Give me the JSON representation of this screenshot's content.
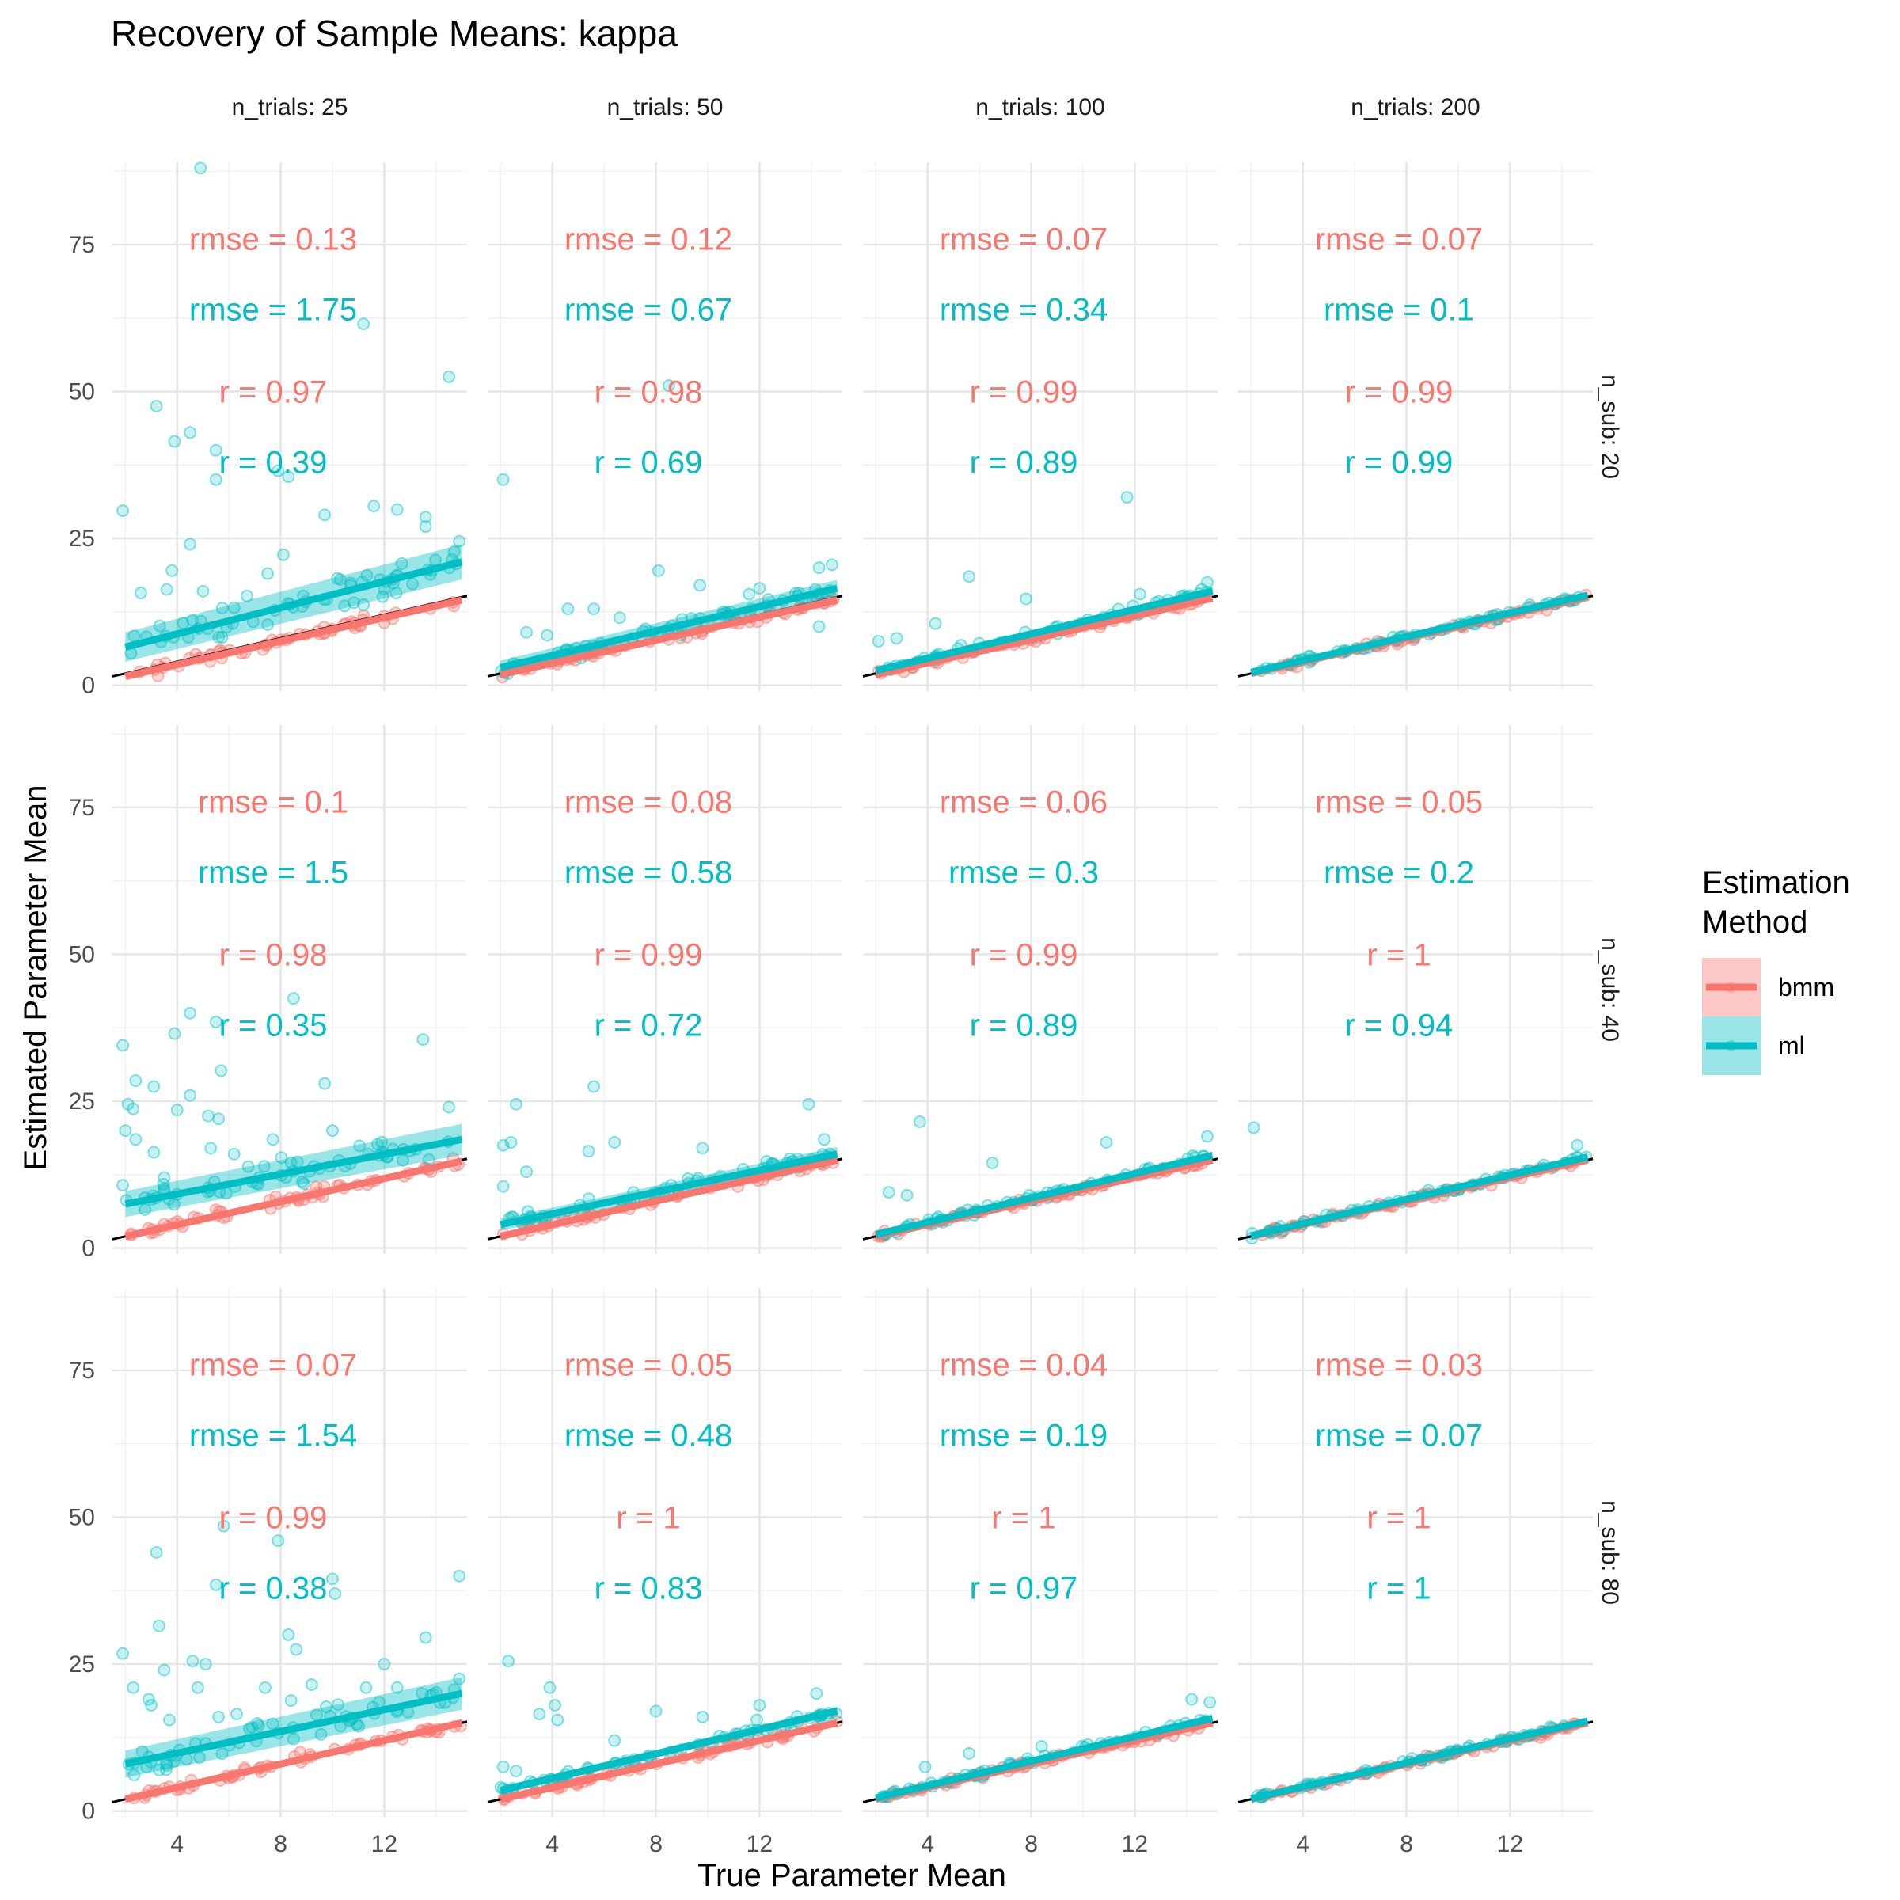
{
  "chart_data": {
    "type": "scatter",
    "title": "Recovery of Sample Means: kappa",
    "xlabel": "True Parameter Mean",
    "ylabel": "Estimated Parameter Mean",
    "facet_col_labels": [
      "n_trials: 25",
      "n_trials: 50",
      "n_trials: 100",
      "n_trials: 200"
    ],
    "facet_row_labels": [
      "n_sub: 20",
      "n_sub: 40",
      "n_sub: 80"
    ],
    "x_ticks": [
      "4",
      "8",
      "12"
    ],
    "y_ticks": [
      "0",
      "25",
      "50",
      "75"
    ],
    "xlim": [
      1.5,
      15.2
    ],
    "ylim": [
      -1,
      89
    ],
    "x_range_data": [
      2,
      15
    ],
    "grid": true,
    "identity_line": true,
    "legend": {
      "title_line1": "Estimation",
      "title_line2": "Method",
      "position": "right",
      "items": [
        {
          "name": "bmm",
          "color": "#F8766D"
        },
        {
          "name": "ml",
          "color": "#00BFC4"
        }
      ]
    },
    "series": [
      {
        "name": "bmm",
        "color": "#F8766D"
      },
      {
        "name": "ml",
        "color": "#00BFC4"
      }
    ],
    "panels": [
      {
        "row": 0,
        "col": 0,
        "rmse_bmm": "rmse = 0.13",
        "rmse_ml": "rmse = 1.75",
        "r_bmm": "r = 0.97",
        "r_ml": "r = 0.39",
        "fit_bmm": [
          [
            2,
            1.5
          ],
          [
            15,
            14.5
          ]
        ],
        "fit_ml": [
          [
            2,
            6.5
          ],
          [
            15,
            21
          ]
        ],
        "band_ml": 2.5,
        "ml_outliers": [
          [
            4.9,
            88
          ],
          [
            11.2,
            61.5
          ],
          [
            14.5,
            52.5
          ],
          [
            3.2,
            47.5
          ],
          [
            4.5,
            43
          ],
          [
            3.9,
            41.5
          ],
          [
            5.5,
            40
          ],
          [
            7.9,
            36.5
          ],
          [
            8.3,
            35.5
          ],
          [
            5.5,
            35
          ],
          [
            9.7,
            29
          ],
          [
            11.6,
            30.5
          ],
          [
            12.5,
            29.9
          ],
          [
            1.9,
            29.7
          ],
          [
            13.6,
            28.6
          ],
          [
            13.6,
            27
          ],
          [
            14.9,
            24.5
          ],
          [
            4.5,
            24
          ],
          [
            8.1,
            22.2
          ],
          [
            3.8,
            19.5
          ],
          [
            7.5,
            19
          ],
          [
            2.6,
            15.7
          ],
          [
            3.6,
            16.3
          ],
          [
            5,
            16
          ],
          [
            6.7,
            15.2
          ],
          [
            10.3,
            18
          ],
          [
            12,
            16.4
          ],
          [
            11.2,
            13.7
          ]
        ]
      },
      {
        "row": 0,
        "col": 1,
        "rmse_bmm": "rmse = 0.12",
        "rmse_ml": "rmse = 0.67",
        "r_bmm": "r = 0.98",
        "r_ml": "r = 0.69",
        "fit_bmm": [
          [
            2,
            1.8
          ],
          [
            15,
            14.5
          ]
        ],
        "fit_ml": [
          [
            2,
            3
          ],
          [
            15,
            16.5
          ]
        ],
        "band_ml": 1.2,
        "ml_outliers": [
          [
            2.1,
            35
          ],
          [
            8.5,
            51
          ],
          [
            8.1,
            19.5
          ],
          [
            9.7,
            17
          ],
          [
            12,
            16.5
          ],
          [
            14.3,
            20
          ],
          [
            14.8,
            20.5
          ],
          [
            11.6,
            15.5
          ],
          [
            4.6,
            13
          ],
          [
            5.6,
            13
          ],
          [
            3,
            9
          ],
          [
            3.8,
            8.5
          ],
          [
            6.6,
            11.5
          ],
          [
            14.3,
            10
          ]
        ]
      },
      {
        "row": 0,
        "col": 2,
        "rmse_bmm": "rmse = 0.07",
        "rmse_ml": "rmse = 0.34",
        "r_bmm": "r = 0.99",
        "r_ml": "r = 0.89",
        "fit_bmm": [
          [
            2,
            1.8
          ],
          [
            15,
            14.8
          ]
        ],
        "fit_ml": [
          [
            2,
            2.5
          ],
          [
            15,
            16
          ]
        ],
        "band_ml": 0.6,
        "ml_outliers": [
          [
            11.7,
            32
          ],
          [
            5.6,
            18.5
          ],
          [
            7.8,
            14.7
          ],
          [
            2.1,
            7.5
          ],
          [
            4.3,
            10.5
          ],
          [
            2.8,
            8
          ],
          [
            12.2,
            15.5
          ],
          [
            14.8,
            17.5
          ]
        ]
      },
      {
        "row": 0,
        "col": 3,
        "rmse_bmm": "rmse = 0.07",
        "rmse_ml": "rmse = 0.1",
        "r_bmm": "r = 0.99",
        "r_ml": "r = 0.99",
        "fit_bmm": [
          [
            2,
            2
          ],
          [
            15,
            15
          ]
        ],
        "fit_ml": [
          [
            2,
            2.2
          ],
          [
            15,
            15.3
          ]
        ],
        "band_ml": 0.3,
        "ml_outliers": []
      },
      {
        "row": 1,
        "col": 0,
        "rmse_bmm": "rmse = 0.1",
        "rmse_ml": "rmse = 1.5",
        "r_bmm": "r = 0.98",
        "r_ml": "r = 0.35",
        "fit_bmm": [
          [
            2,
            2
          ],
          [
            15,
            14.8
          ]
        ],
        "fit_ml": [
          [
            2,
            7.5
          ],
          [
            15,
            18.5
          ]
        ],
        "band_ml": 2.2,
        "ml_outliers": [
          [
            1.9,
            34.5
          ],
          [
            3.9,
            36.5
          ],
          [
            8.5,
            42.5
          ],
          [
            4.5,
            40
          ],
          [
            5.5,
            38.5
          ],
          [
            2.4,
            28.5
          ],
          [
            3.1,
            27.5
          ],
          [
            13.5,
            35.5
          ],
          [
            5.7,
            30.2
          ],
          [
            9.7,
            28
          ],
          [
            4.5,
            26
          ],
          [
            2.1,
            24.5
          ],
          [
            2.3,
            23.7
          ],
          [
            4,
            23.5
          ],
          [
            5.2,
            22.5
          ],
          [
            5.6,
            22
          ],
          [
            2,
            20
          ],
          [
            2.4,
            18.5
          ],
          [
            7.7,
            18.5
          ],
          [
            10,
            20
          ],
          [
            14.5,
            24
          ],
          [
            3.1,
            16.3
          ],
          [
            6.2,
            16
          ],
          [
            5.3,
            17
          ],
          [
            12.1,
            15.5
          ],
          [
            1.9,
            10.7
          ],
          [
            3.5,
            12
          ]
        ]
      },
      {
        "row": 1,
        "col": 1,
        "rmse_bmm": "rmse = 0.08",
        "rmse_ml": "rmse = 0.58",
        "r_bmm": "r = 0.99",
        "r_ml": "r = 0.72",
        "fit_bmm": [
          [
            2,
            2
          ],
          [
            15,
            15
          ]
        ],
        "fit_ml": [
          [
            2,
            4
          ],
          [
            15,
            16
          ]
        ],
        "band_ml": 1.0,
        "ml_outliers": [
          [
            2.6,
            24.5
          ],
          [
            5.6,
            27.5
          ],
          [
            13.9,
            24.5
          ],
          [
            2.1,
            17.5
          ],
          [
            2.4,
            18
          ],
          [
            5.4,
            16.5
          ],
          [
            6.4,
            18
          ],
          [
            9.8,
            17
          ],
          [
            3,
            13
          ],
          [
            2.1,
            10.5
          ],
          [
            14.5,
            18.5
          ]
        ]
      },
      {
        "row": 1,
        "col": 2,
        "rmse_bmm": "rmse = 0.06",
        "rmse_ml": "rmse = 0.3",
        "r_bmm": "r = 0.99",
        "r_ml": "r = 0.89",
        "fit_bmm": [
          [
            2,
            2
          ],
          [
            15,
            15
          ]
        ],
        "fit_ml": [
          [
            2,
            2.3
          ],
          [
            15,
            15.8
          ]
        ],
        "band_ml": 0.5,
        "ml_outliers": [
          [
            3.7,
            21.5
          ],
          [
            6.5,
            14.5
          ],
          [
            2.5,
            9.5
          ],
          [
            3.2,
            9
          ],
          [
            10.9,
            18
          ],
          [
            14.8,
            19
          ]
        ]
      },
      {
        "row": 1,
        "col": 3,
        "rmse_bmm": "rmse = 0.05",
        "rmse_ml": "rmse = 0.2",
        "r_bmm": "r = 1",
        "r_ml": "r = 0.94",
        "fit_bmm": [
          [
            2,
            2
          ],
          [
            15,
            15
          ]
        ],
        "fit_ml": [
          [
            2,
            2.1
          ],
          [
            15,
            15.5
          ]
        ],
        "band_ml": 0.3,
        "ml_outliers": [
          [
            2.1,
            20.5
          ],
          [
            14.6,
            17.5
          ]
        ]
      },
      {
        "row": 2,
        "col": 0,
        "rmse_bmm": "rmse = 0.07",
        "rmse_ml": "rmse = 1.54",
        "r_bmm": "r = 0.99",
        "r_ml": "r = 0.38",
        "fit_bmm": [
          [
            2,
            2
          ],
          [
            15,
            15
          ]
        ],
        "fit_ml": [
          [
            2,
            8
          ],
          [
            15,
            20
          ]
        ],
        "band_ml": 2.3,
        "ml_outliers": [
          [
            3.2,
            44
          ],
          [
            5.8,
            48.5
          ],
          [
            7.9,
            46
          ],
          [
            5.5,
            38.5
          ],
          [
            10,
            39.5
          ],
          [
            10.1,
            37
          ],
          [
            14.9,
            40
          ],
          [
            8.3,
            30
          ],
          [
            3.3,
            31.5
          ],
          [
            13.6,
            29.5
          ],
          [
            8.6,
            27.5
          ],
          [
            1.9,
            26.8
          ],
          [
            4.6,
            25.5
          ],
          [
            12,
            25
          ],
          [
            2.3,
            21
          ],
          [
            3.5,
            24
          ],
          [
            5.1,
            25
          ],
          [
            4.8,
            21
          ],
          [
            7.4,
            21
          ],
          [
            9.2,
            21.5
          ],
          [
            11.3,
            21
          ],
          [
            12.5,
            21
          ],
          [
            2.9,
            19
          ],
          [
            3.7,
            15.5
          ],
          [
            5.6,
            16
          ],
          [
            6.3,
            16.5
          ],
          [
            7.1,
            14.9
          ],
          [
            8.4,
            18.8
          ],
          [
            11.8,
            18.5
          ],
          [
            3,
            18
          ],
          [
            14.9,
            22.5
          ]
        ]
      },
      {
        "row": 2,
        "col": 1,
        "rmse_bmm": "rmse = 0.05",
        "rmse_ml": "rmse = 0.48",
        "r_bmm": "r = 1",
        "r_ml": "r = 0.83",
        "fit_bmm": [
          [
            2,
            2
          ],
          [
            15,
            15
          ]
        ],
        "fit_ml": [
          [
            2,
            3.5
          ],
          [
            15,
            17
          ]
        ],
        "band_ml": 0.6,
        "ml_outliers": [
          [
            2.3,
            25.5
          ],
          [
            3.9,
            21
          ],
          [
            3.5,
            16.5
          ],
          [
            4.1,
            18
          ],
          [
            4.2,
            15.5
          ],
          [
            8,
            17
          ],
          [
            9.8,
            16
          ],
          [
            12,
            18
          ],
          [
            6.4,
            12
          ],
          [
            14.2,
            20
          ],
          [
            11.9,
            15.5
          ],
          [
            2.1,
            7.5
          ],
          [
            2.6,
            6.8
          ]
        ]
      },
      {
        "row": 2,
        "col": 2,
        "rmse_bmm": "rmse = 0.04",
        "rmse_ml": "rmse = 0.19",
        "r_bmm": "r = 1",
        "r_ml": "r = 0.97",
        "fit_bmm": [
          [
            2,
            2
          ],
          [
            15,
            15
          ]
        ],
        "fit_ml": [
          [
            2,
            2.2
          ],
          [
            15,
            15.8
          ]
        ],
        "band_ml": 0.4,
        "ml_outliers": [
          [
            3.9,
            7.5
          ],
          [
            5.6,
            9.8
          ],
          [
            8.4,
            11
          ],
          [
            14.2,
            19
          ],
          [
            14.9,
            18.5
          ]
        ]
      },
      {
        "row": 2,
        "col": 3,
        "rmse_bmm": "rmse = 0.03",
        "rmse_ml": "rmse = 0.07",
        "r_bmm": "r = 1",
        "r_ml": "r = 1",
        "fit_bmm": [
          [
            2,
            2
          ],
          [
            15,
            15
          ]
        ],
        "fit_ml": [
          [
            2,
            2.1
          ],
          [
            15,
            15.3
          ]
        ],
        "band_ml": 0.2,
        "ml_outliers": []
      }
    ]
  }
}
